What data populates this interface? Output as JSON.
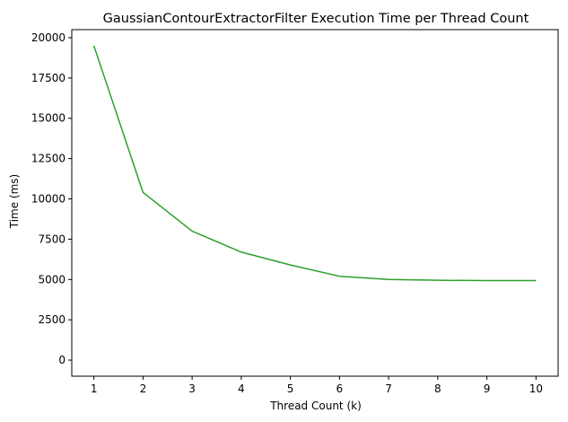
{
  "chart_data": {
    "type": "line",
    "title": "GaussianContourExtractorFilter Execution Time per Thread Count",
    "xlabel": "Thread Count (k)",
    "ylabel": "Time (ms)",
    "x": [
      1,
      2,
      3,
      4,
      5,
      6,
      7,
      8,
      9,
      10
    ],
    "series": [
      {
        "values": [
          19500,
          10400,
          8000,
          6700,
          5900,
          5200,
          5000,
          4950,
          4930,
          4930
        ],
        "color": "#2ca02c"
      }
    ],
    "xticks": [
      "1",
      "2",
      "3",
      "4",
      "5",
      "6",
      "7",
      "8",
      "9",
      "10"
    ],
    "yticks": [
      "0",
      "2500",
      "5000",
      "7500",
      "10000",
      "12500",
      "15000",
      "17500",
      "20000"
    ],
    "xlim": [
      0.55,
      10.45
    ],
    "ylim": [
      -1000,
      20500
    ],
    "grid": false,
    "legend": "none"
  }
}
